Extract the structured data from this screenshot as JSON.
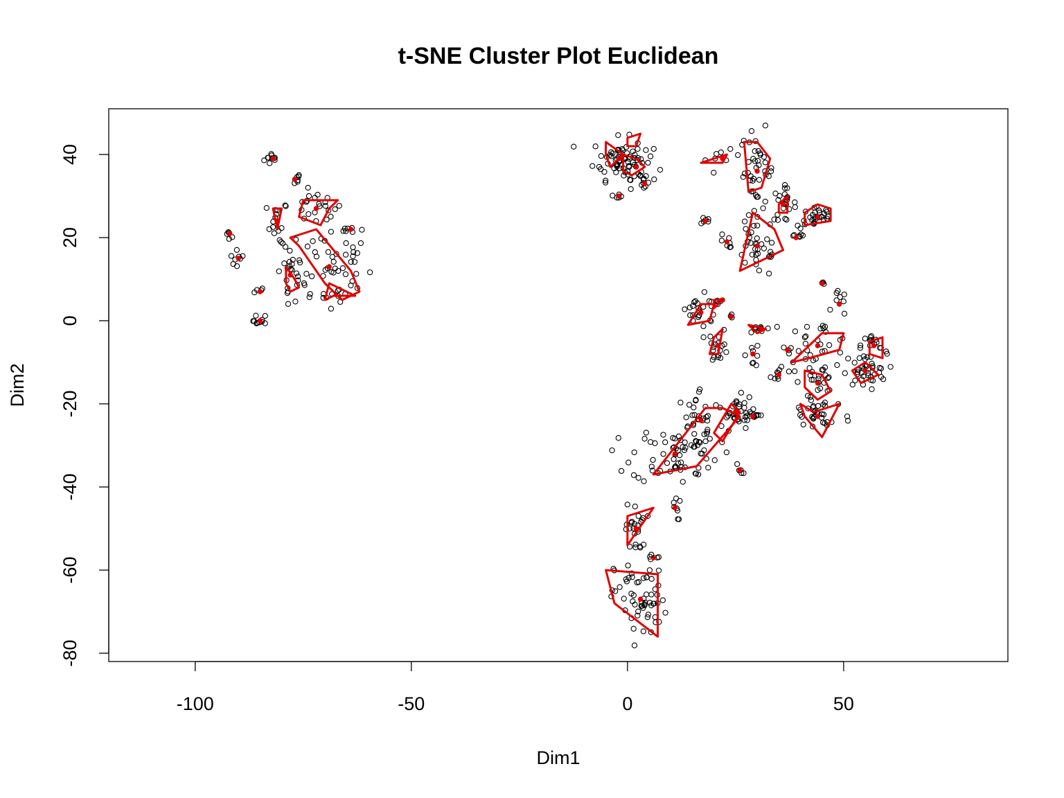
{
  "chart_data": {
    "type": "scatter",
    "title": "t-SNE Cluster Plot Euclidean",
    "xlabel": "Dim1",
    "ylabel": "Dim2",
    "xlim": [
      -120,
      88
    ],
    "ylim": [
      -82,
      51
    ],
    "xticks": [
      -100,
      -50,
      0,
      50
    ],
    "yticks": [
      -80,
      -60,
      -40,
      -20,
      0,
      20,
      40
    ],
    "xtick_labels": [
      "-100",
      "-50",
      "0",
      "50"
    ],
    "ytick_labels": [
      "-80",
      "-60",
      "-40",
      "-20",
      "0",
      "20",
      "40"
    ],
    "grid": false,
    "point_color": "#000000",
    "hull_color": "#e00000",
    "clusters": [
      {
        "center": [
          -82,
          39
        ],
        "spread": [
          1,
          0.8
        ],
        "count": 10
      },
      {
        "center": [
          -77,
          34
        ],
        "spread": [
          0.8,
          0.8
        ],
        "count": 6
      },
      {
        "center": [
          -92,
          21
        ],
        "spread": [
          0.5,
          0.5
        ],
        "count": 5
      },
      {
        "center": [
          -90,
          15
        ],
        "spread": [
          1,
          1
        ],
        "count": 8
      },
      {
        "center": [
          -85,
          7
        ],
        "spread": [
          0.8,
          0.5
        ],
        "count": 4
      },
      {
        "center": [
          -85,
          0
        ],
        "spread": [
          0.8,
          0.8
        ],
        "count": 10
      },
      {
        "center": [
          -81,
          24
        ],
        "spread": [
          1.2,
          2.5
        ],
        "count": 14
      },
      {
        "center": [
          -72,
          27
        ],
        "spread": [
          3,
          2
        ],
        "count": 22
      },
      {
        "center": [
          -78,
          11
        ],
        "spread": [
          1.5,
          3.5
        ],
        "count": 22
      },
      {
        "center": [
          -69,
          13
        ],
        "spread": [
          5,
          6
        ],
        "count": 55
      },
      {
        "center": [
          -64,
          22
        ],
        "spread": [
          0.8,
          0.5
        ],
        "count": 6
      },
      {
        "center": [
          -2,
          39
        ],
        "spread": [
          3,
          2.5
        ],
        "count": 60
      },
      {
        "center": [
          2,
          37
        ],
        "spread": [
          2,
          2.5
        ],
        "count": 22
      },
      {
        "center": [
          -2,
          30
        ],
        "spread": [
          0.5,
          0.4
        ],
        "count": 5
      },
      {
        "center": [
          4,
          33
        ],
        "spread": [
          0.5,
          0.7
        ],
        "count": 6
      },
      {
        "center": [
          22,
          39
        ],
        "spread": [
          2,
          1
        ],
        "count": 8
      },
      {
        "center": [
          30,
          36
        ],
        "spread": [
          2,
          5
        ],
        "count": 40
      },
      {
        "center": [
          36,
          28
        ],
        "spread": [
          1.5,
          2
        ],
        "count": 22
      },
      {
        "center": [
          44,
          25
        ],
        "spread": [
          2,
          1.5
        ],
        "count": 28
      },
      {
        "center": [
          30,
          18
        ],
        "spread": [
          3,
          4
        ],
        "count": 38
      },
      {
        "center": [
          39,
          20
        ],
        "spread": [
          1,
          0.6
        ],
        "count": 6
      },
      {
        "center": [
          18,
          24
        ],
        "spread": [
          1,
          0.4
        ],
        "count": 6
      },
      {
        "center": [
          23,
          19
        ],
        "spread": [
          0.8,
          1.2
        ],
        "count": 5
      },
      {
        "center": [
          45,
          9
        ],
        "spread": [
          0.5,
          0.5
        ],
        "count": 3
      },
      {
        "center": [
          49,
          4
        ],
        "spread": [
          0.8,
          1.5
        ],
        "count": 8
      },
      {
        "center": [
          17,
          2
        ],
        "spread": [
          2.5,
          2
        ],
        "count": 24
      },
      {
        "center": [
          22,
          5
        ],
        "spread": [
          0.5,
          0.4
        ],
        "count": 3
      },
      {
        "center": [
          24,
          1
        ],
        "spread": [
          0.4,
          0.4
        ],
        "count": 3
      },
      {
        "center": [
          31,
          -2
        ],
        "spread": [
          1.5,
          0.8
        ],
        "count": 10
      },
      {
        "center": [
          21,
          -6
        ],
        "spread": [
          1.2,
          2
        ],
        "count": 18
      },
      {
        "center": [
          29,
          -8
        ],
        "spread": [
          0.8,
          1.5
        ],
        "count": 8
      },
      {
        "center": [
          35,
          -13
        ],
        "spread": [
          1,
          0.8
        ],
        "count": 8
      },
      {
        "center": [
          44,
          -6
        ],
        "spread": [
          4,
          3
        ],
        "count": 30
      },
      {
        "center": [
          44,
          -15
        ],
        "spread": [
          2,
          3
        ],
        "count": 24
      },
      {
        "center": [
          55,
          -12
        ],
        "spread": [
          2.5,
          2
        ],
        "count": 40
      },
      {
        "center": [
          57,
          -6
        ],
        "spread": [
          1.5,
          1.5
        ],
        "count": 14
      },
      {
        "center": [
          37,
          -7
        ],
        "spread": [
          0.5,
          0.5
        ],
        "count": 4
      },
      {
        "center": [
          44,
          -23
        ],
        "spread": [
          4,
          2.5
        ],
        "count": 30
      },
      {
        "center": [
          17,
          -24
        ],
        "spread": [
          3,
          4
        ],
        "count": 40
      },
      {
        "center": [
          11,
          -32
        ],
        "spread": [
          5,
          3.5
        ],
        "count": 60
      },
      {
        "center": [
          25,
          -22
        ],
        "spread": [
          2,
          2
        ],
        "count": 30
      },
      {
        "center": [
          29,
          -23
        ],
        "spread": [
          0.8,
          0.6
        ],
        "count": 10
      },
      {
        "center": [
          26,
          -36
        ],
        "spread": [
          0.5,
          1
        ],
        "count": 5
      },
      {
        "center": [
          11,
          -45
        ],
        "spread": [
          0.6,
          1.5
        ],
        "count": 8
      },
      {
        "center": [
          2,
          -50
        ],
        "spread": [
          1.2,
          3
        ],
        "count": 24
      },
      {
        "center": [
          6,
          -57
        ],
        "spread": [
          0.5,
          0.4
        ],
        "count": 3
      },
      {
        "center": [
          3,
          -67
        ],
        "spread": [
          3,
          5
        ],
        "count": 60
      }
    ],
    "hulls": [
      [
        [
          -82,
          27
        ],
        [
          -81,
          22
        ],
        [
          -80,
          27
        ]
      ],
      [
        [
          -75,
          29
        ],
        [
          -67,
          29
        ],
        [
          -69,
          27
        ],
        [
          -71,
          23
        ],
        [
          -76,
          25
        ]
      ],
      [
        [
          -78,
          20
        ],
        [
          -72,
          22
        ],
        [
          -64,
          12
        ],
        [
          -62,
          7
        ],
        [
          -66,
          5
        ],
        [
          -70,
          9
        ],
        [
          -76,
          18
        ]
      ],
      [
        [
          -79,
          13
        ],
        [
          -77,
          10
        ],
        [
          -76,
          8
        ],
        [
          -78,
          7
        ],
        [
          -79,
          9
        ]
      ],
      [
        [
          -69,
          9
        ],
        [
          -63,
          6
        ],
        [
          -68,
          6
        ],
        [
          -70,
          5
        ]
      ],
      [
        [
          -5,
          43
        ],
        [
          -1,
          40
        ],
        [
          -4,
          37
        ],
        [
          -5,
          40
        ]
      ],
      [
        [
          0,
          44
        ],
        [
          3,
          45
        ],
        [
          2,
          42
        ],
        [
          0,
          42
        ]
      ],
      [
        [
          -1,
          40
        ],
        [
          2,
          39
        ],
        [
          4,
          37
        ],
        [
          1,
          35
        ],
        [
          -1,
          36
        ]
      ],
      [
        [
          17,
          38
        ],
        [
          23,
          40
        ],
        [
          22,
          38
        ]
      ],
      [
        [
          27,
          43
        ],
        [
          30,
          43
        ],
        [
          33,
          39
        ],
        [
          31,
          32
        ],
        [
          28,
          31
        ]
      ],
      [
        [
          35,
          28
        ],
        [
          37,
          30
        ],
        [
          37,
          26
        ],
        [
          35,
          26
        ]
      ],
      [
        [
          41,
          26
        ],
        [
          44,
          28
        ],
        [
          47,
          27
        ],
        [
          47,
          24
        ],
        [
          41,
          23
        ]
      ],
      [
        [
          26,
          12
        ],
        [
          29,
          26
        ],
        [
          34,
          22
        ],
        [
          36,
          17
        ]
      ],
      [
        [
          14,
          -1
        ],
        [
          17,
          4
        ],
        [
          20,
          4
        ],
        [
          19,
          0
        ]
      ],
      [
        [
          20,
          3
        ],
        [
          22,
          5
        ],
        [
          20,
          5
        ]
      ],
      [
        [
          20,
          -4
        ],
        [
          22,
          -2
        ],
        [
          21,
          -8
        ],
        [
          19,
          -8
        ]
      ],
      [
        [
          28,
          -1
        ],
        [
          32,
          -2
        ],
        [
          30,
          -3
        ]
      ],
      [
        [
          38,
          -10
        ],
        [
          45,
          -3
        ],
        [
          50,
          -3
        ],
        [
          49,
          -7
        ],
        [
          42,
          -9
        ]
      ],
      [
        [
          41,
          -12
        ],
        [
          45,
          -13
        ],
        [
          47,
          -17
        ],
        [
          44,
          -19
        ],
        [
          41,
          -16
        ]
      ],
      [
        [
          52,
          -12
        ],
        [
          55,
          -10
        ],
        [
          58,
          -13
        ],
        [
          54,
          -15
        ]
      ],
      [
        [
          56,
          -5
        ],
        [
          59,
          -4
        ],
        [
          59,
          -9
        ],
        [
          56,
          -8
        ]
      ],
      [
        [
          40,
          -20
        ],
        [
          41,
          -23
        ],
        [
          45,
          -28
        ],
        [
          49,
          -20
        ],
        [
          43,
          -22
        ]
      ],
      [
        [
          6,
          -37
        ],
        [
          16,
          -35
        ],
        [
          26,
          -23
        ],
        [
          22,
          -21
        ],
        [
          18,
          -21
        ]
      ],
      [
        [
          20,
          -27
        ],
        [
          24,
          -20
        ],
        [
          26,
          -22
        ],
        [
          22,
          -29
        ]
      ],
      [
        [
          0,
          -54
        ],
        [
          6,
          -45
        ],
        [
          3,
          -46
        ],
        [
          0,
          -47
        ]
      ],
      [
        [
          -5,
          -60
        ],
        [
          7,
          -61
        ],
        [
          7,
          -76
        ],
        [
          -3,
          -68
        ]
      ]
    ]
  }
}
